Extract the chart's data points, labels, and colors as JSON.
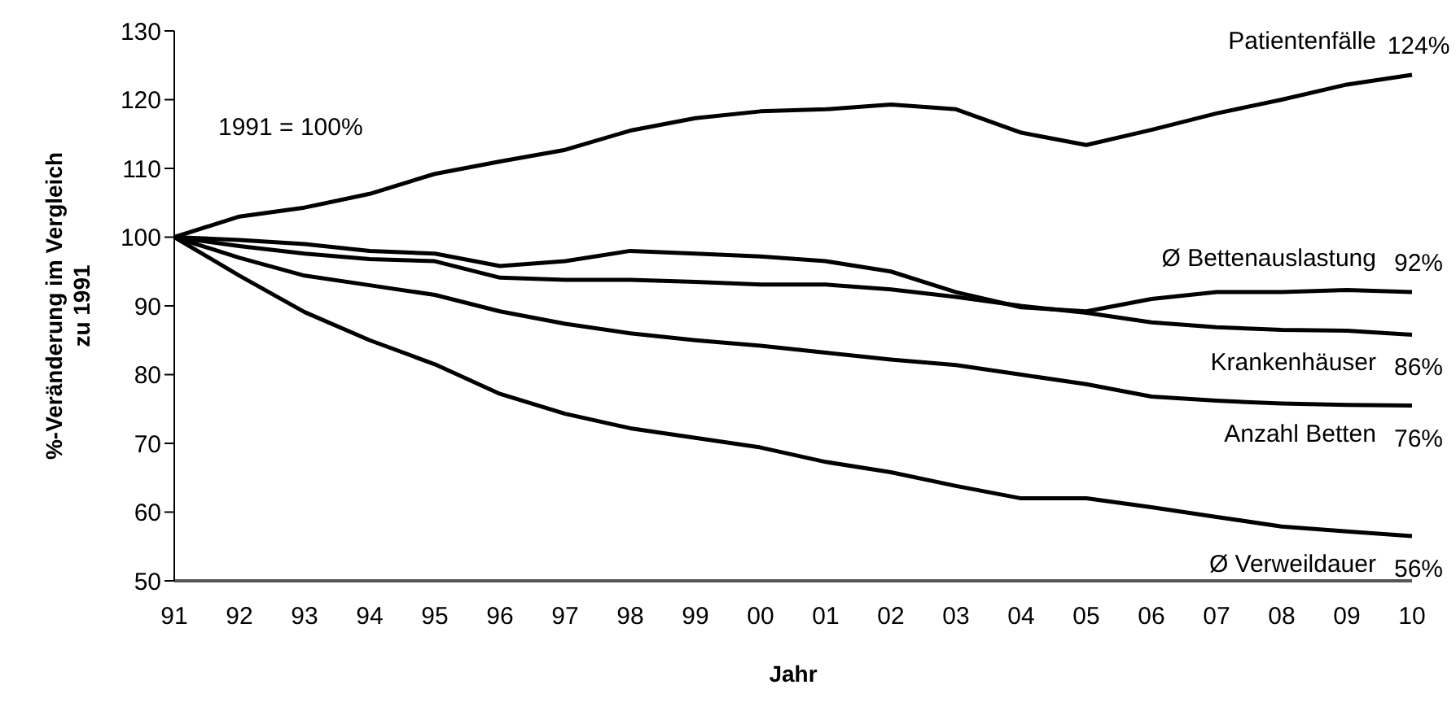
{
  "chart_data": {
    "type": "line",
    "xlabel": "Jahr",
    "ylabel": "%-Veränderung im Vergleich zu 1991",
    "categories": [
      "91",
      "92",
      "93",
      "94",
      "95",
      "96",
      "97",
      "98",
      "99",
      "00",
      "01",
      "02",
      "03",
      "04",
      "05",
      "06",
      "07",
      "08",
      "09",
      "10"
    ],
    "ylim": [
      50,
      130
    ],
    "yticks": [
      50,
      60,
      70,
      80,
      90,
      100,
      110,
      120,
      130
    ],
    "grid": false,
    "legend": false,
    "marker": "none",
    "line_style": "solid",
    "annotations": [
      "1991 = 100%"
    ],
    "series": [
      {
        "name": "Patientenfälle",
        "color": "#000000",
        "values": [
          100,
          103,
          104.3,
          106.3,
          109.2,
          111,
          112.7,
          115.5,
          117.3,
          118.3,
          118.6,
          119.3,
          118.6,
          115.2,
          113.4,
          115.6,
          118,
          120,
          122.2,
          123.6
        ],
        "value_labels": [
          null,
          null,
          null,
          null,
          null,
          null,
          null,
          null,
          null,
          null,
          null,
          null,
          null,
          null,
          null,
          null,
          null,
          null,
          null,
          "124%"
        ]
      },
      {
        "name": "Ø Bettenauslastung",
        "color": "#000000",
        "values": [
          100,
          99.6,
          99,
          98,
          97.6,
          95.8,
          96.5,
          98,
          97.6,
          97.2,
          96.5,
          95,
          92,
          89.8,
          89.2,
          91,
          92,
          92,
          92.3,
          92
        ],
        "value_labels": [
          null,
          null,
          null,
          null,
          null,
          null,
          null,
          null,
          null,
          null,
          null,
          null,
          null,
          null,
          null,
          null,
          null,
          null,
          null,
          "92%"
        ]
      },
      {
        "name": "Krankenhäuser",
        "color": "#000000",
        "values": [
          100,
          98.7,
          97.6,
          96.8,
          96.5,
          94.1,
          93.8,
          93.8,
          93.5,
          93.1,
          93.1,
          92.4,
          91.3,
          90,
          89,
          87.6,
          86.9,
          86.5,
          86.4,
          85.8
        ],
        "value_labels": [
          null,
          null,
          null,
          null,
          null,
          null,
          null,
          null,
          null,
          null,
          null,
          null,
          null,
          null,
          null,
          null,
          null,
          null,
          null,
          "86%"
        ]
      },
      {
        "name": "Anzahl Betten",
        "color": "#000000",
        "values": [
          100,
          97,
          94.4,
          93,
          91.6,
          89.2,
          87.4,
          86,
          85,
          84.2,
          83.2,
          82.2,
          81.4,
          80,
          78.6,
          76.8,
          76.2,
          75.8,
          75.6,
          75.5
        ],
        "value_labels": [
          null,
          null,
          null,
          null,
          null,
          null,
          null,
          null,
          null,
          null,
          null,
          null,
          null,
          null,
          null,
          null,
          null,
          null,
          null,
          "76%"
        ]
      },
      {
        "name": "Ø Verweildauer",
        "color": "#000000",
        "values": [
          100,
          94.4,
          89.1,
          85,
          81.5,
          77.2,
          74.3,
          72.2,
          70.8,
          69.4,
          67.3,
          65.8,
          63.8,
          62,
          62,
          60.7,
          59.3,
          57.9,
          57.2,
          56.5
        ],
        "value_labels": [
          null,
          null,
          null,
          null,
          null,
          null,
          null,
          null,
          null,
          null,
          null,
          null,
          null,
          null,
          null,
          null,
          null,
          null,
          null,
          "56%"
        ]
      }
    ]
  }
}
